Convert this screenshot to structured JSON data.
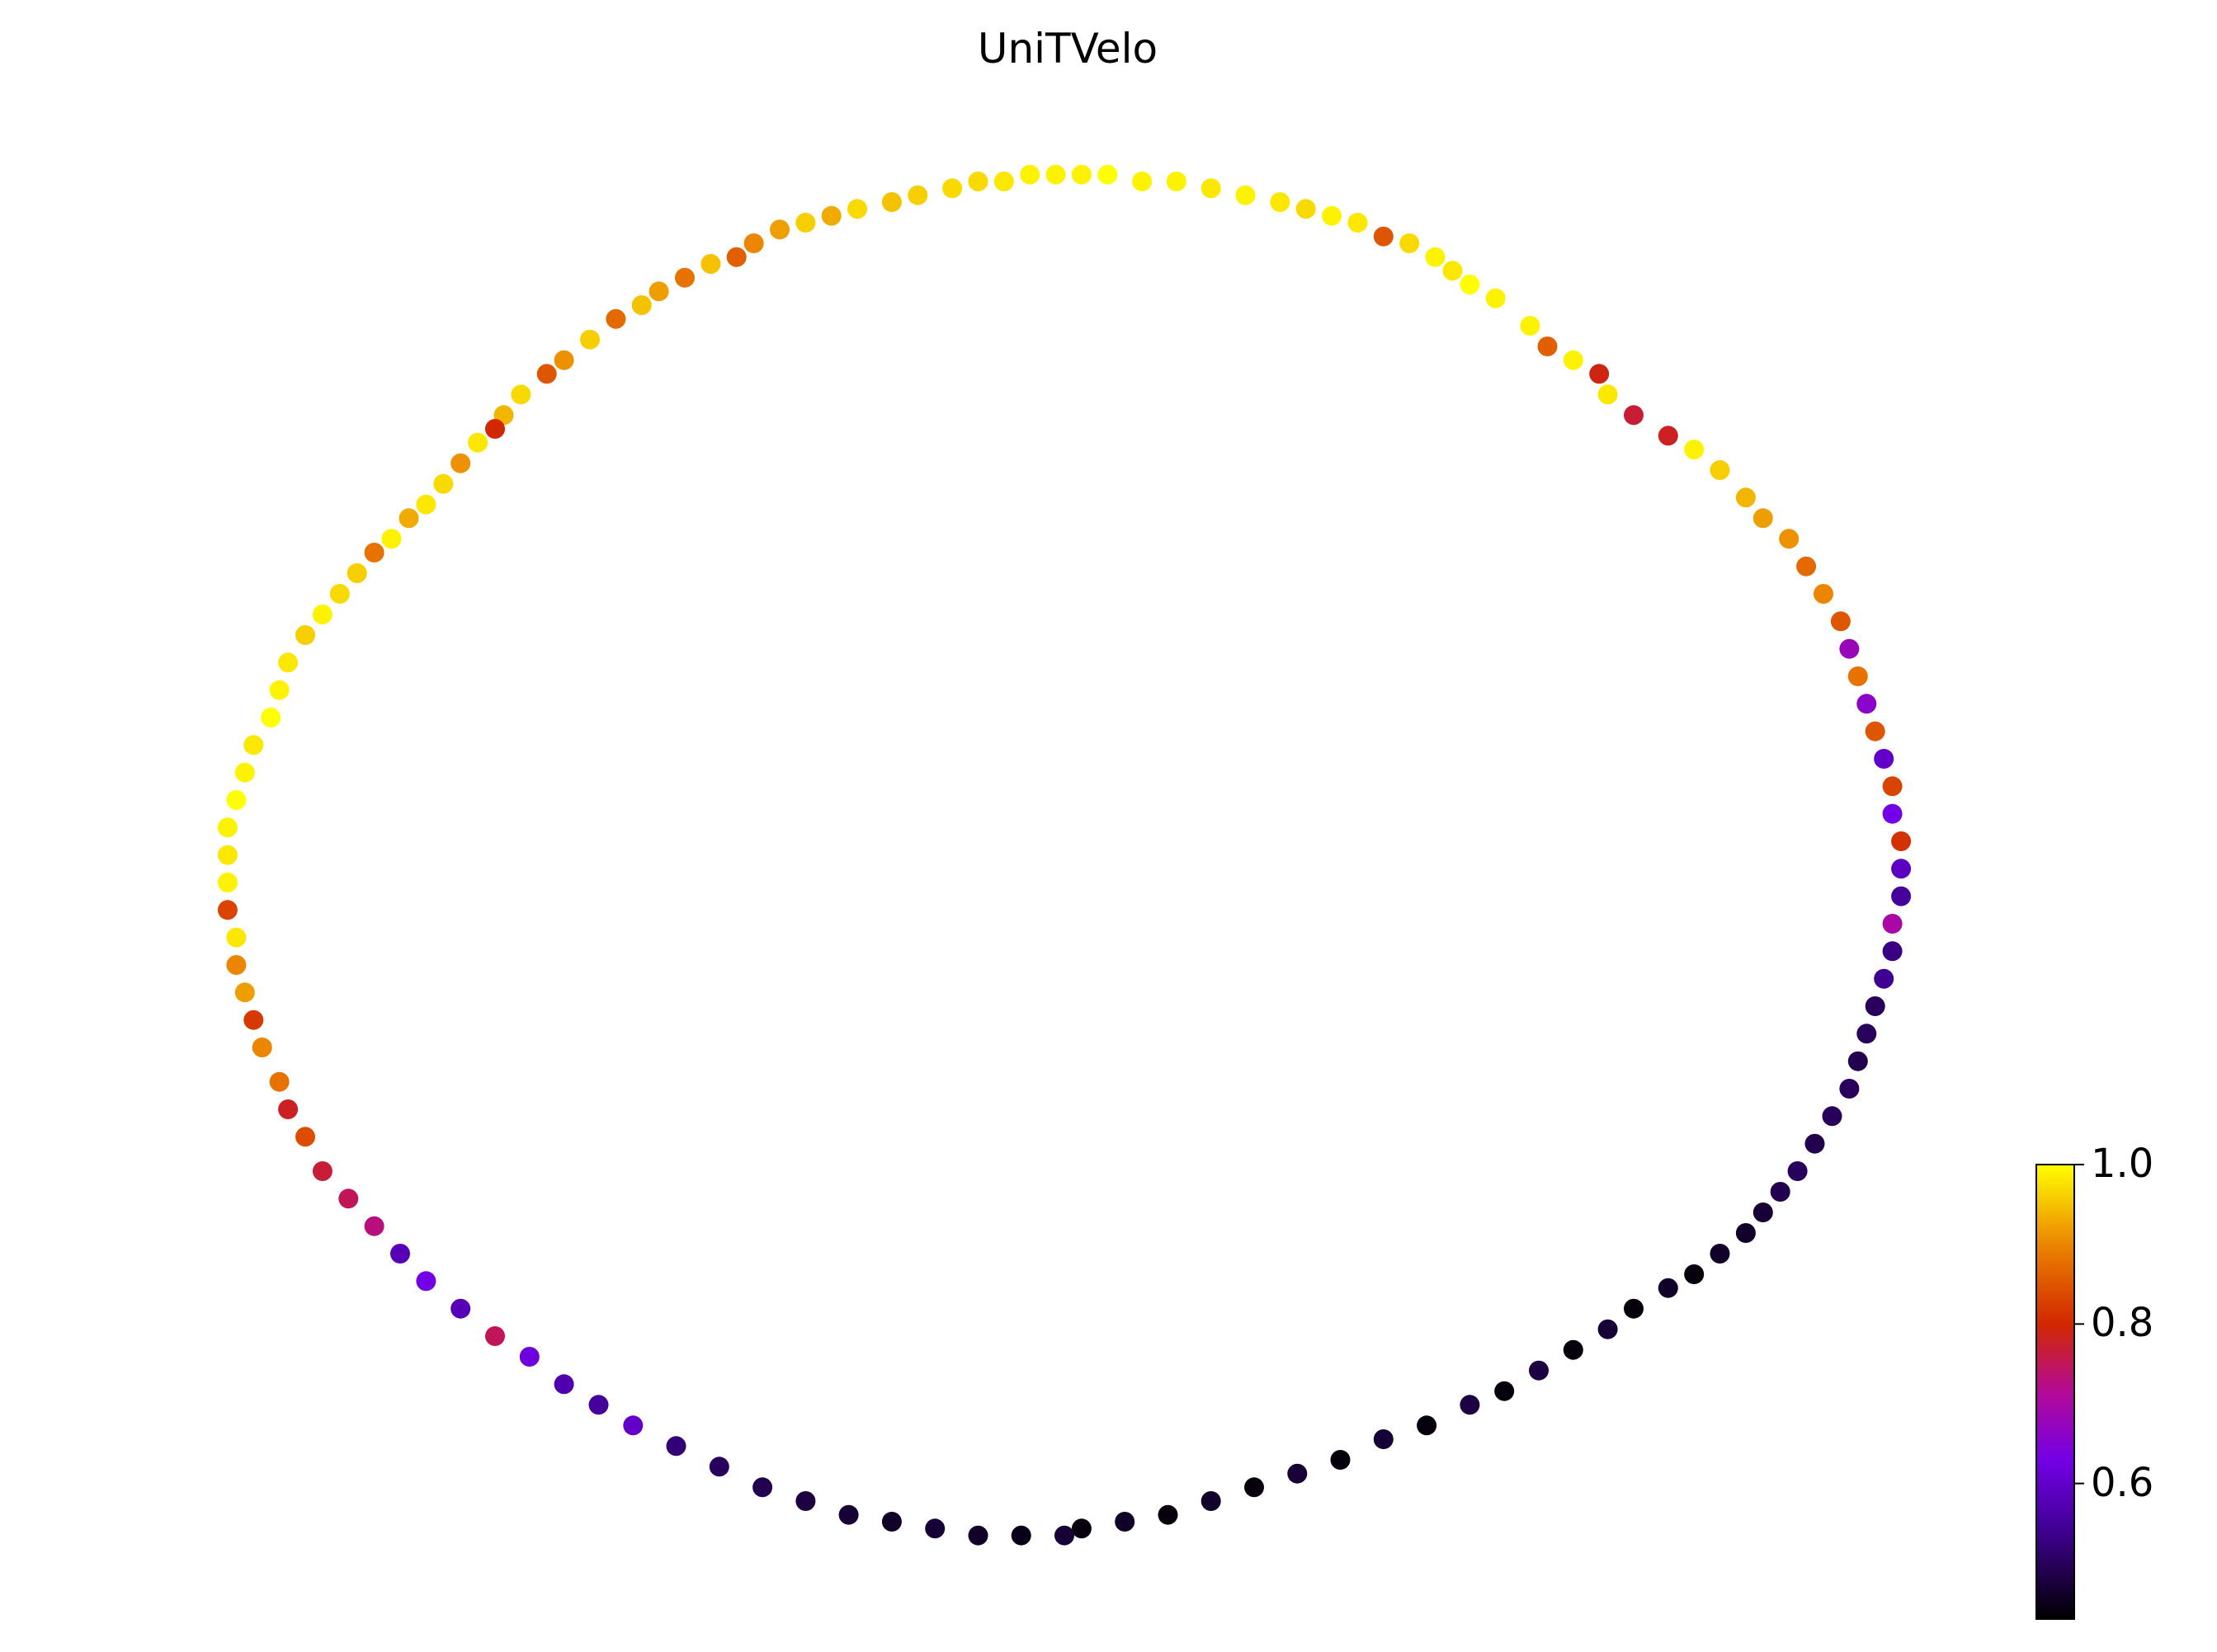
{
  "chart_data": {
    "type": "scatter",
    "title": "UniTVelo",
    "xlabel": "",
    "ylabel": "",
    "xlim": [
      -1.1,
      1.1
    ],
    "ylim": [
      -1.05,
      1.05
    ],
    "grid": false,
    "axes_visible": false,
    "colormap": "gnuplot",
    "colorbar": {
      "min": 0.43,
      "max": 1.0,
      "ticks": [
        0.6,
        0.8,
        1.0
      ],
      "tick_labels": [
        "0.6",
        "0.8",
        "1.0"
      ],
      "placement": "bottom-right"
    },
    "points": [
      {
        "x": -0.01,
        "y": 1.0,
        "c": 0.99
      },
      {
        "x": 0.02,
        "y": 1.0,
        "c": 0.99
      },
      {
        "x": 0.05,
        "y": 1.0,
        "c": 1.0
      },
      {
        "x": -0.04,
        "y": 1.0,
        "c": 0.99
      },
      {
        "x": 0.09,
        "y": 0.99,
        "c": 0.99
      },
      {
        "x": -0.07,
        "y": 0.99,
        "c": 0.98
      },
      {
        "x": 0.13,
        "y": 0.99,
        "c": 0.99
      },
      {
        "x": -0.1,
        "y": 0.99,
        "c": 0.97
      },
      {
        "x": 0.17,
        "y": 0.98,
        "c": 0.98
      },
      {
        "x": -0.13,
        "y": 0.98,
        "c": 0.97
      },
      {
        "x": 0.21,
        "y": 0.97,
        "c": 0.99
      },
      {
        "x": -0.17,
        "y": 0.97,
        "c": 0.96
      },
      {
        "x": 0.25,
        "y": 0.96,
        "c": 0.98
      },
      {
        "x": -0.2,
        "y": 0.96,
        "c": 0.95
      },
      {
        "x": 0.28,
        "y": 0.95,
        "c": 0.97
      },
      {
        "x": -0.24,
        "y": 0.95,
        "c": 0.97
      },
      {
        "x": 0.31,
        "y": 0.94,
        "c": 0.99
      },
      {
        "x": -0.27,
        "y": 0.94,
        "c": 0.93
      },
      {
        "x": 0.34,
        "y": 0.93,
        "c": 0.98
      },
      {
        "x": -0.3,
        "y": 0.93,
        "c": 0.96
      },
      {
        "x": 0.37,
        "y": 0.91,
        "c": 0.85
      },
      {
        "x": -0.33,
        "y": 0.92,
        "c": 0.92
      },
      {
        "x": 0.4,
        "y": 0.9,
        "c": 0.97
      },
      {
        "x": -0.36,
        "y": 0.9,
        "c": 0.9
      },
      {
        "x": 0.43,
        "y": 0.88,
        "c": 0.99
      },
      {
        "x": -0.38,
        "y": 0.88,
        "c": 0.86
      },
      {
        "x": 0.45,
        "y": 0.86,
        "c": 0.98
      },
      {
        "x": -0.41,
        "y": 0.87,
        "c": 0.95
      },
      {
        "x": 0.47,
        "y": 0.84,
        "c": 1.0
      },
      {
        "x": -0.44,
        "y": 0.85,
        "c": 0.88
      },
      {
        "x": 0.5,
        "y": 0.82,
        "c": 0.99
      },
      {
        "x": -0.47,
        "y": 0.83,
        "c": 0.92
      },
      {
        "x": 0.54,
        "y": 0.78,
        "c": 0.99
      },
      {
        "x": -0.49,
        "y": 0.81,
        "c": 0.95
      },
      {
        "x": 0.56,
        "y": 0.75,
        "c": 0.86
      },
      {
        "x": -0.52,
        "y": 0.79,
        "c": 0.87
      },
      {
        "x": 0.59,
        "y": 0.73,
        "c": 0.99
      },
      {
        "x": -0.55,
        "y": 0.76,
        "c": 0.96
      },
      {
        "x": 0.62,
        "y": 0.71,
        "c": 0.79
      },
      {
        "x": -0.58,
        "y": 0.73,
        "c": 0.91
      },
      {
        "x": 0.63,
        "y": 0.68,
        "c": 0.98
      },
      {
        "x": -0.6,
        "y": 0.71,
        "c": 0.85
      },
      {
        "x": 0.66,
        "y": 0.65,
        "c": 0.77
      },
      {
        "x": -0.63,
        "y": 0.68,
        "c": 0.97
      },
      {
        "x": 0.7,
        "y": 0.62,
        "c": 0.78
      },
      {
        "x": -0.65,
        "y": 0.65,
        "c": 0.94
      },
      {
        "x": 0.73,
        "y": 0.6,
        "c": 0.99
      },
      {
        "x": -0.66,
        "y": 0.63,
        "c": 0.8
      },
      {
        "x": 0.76,
        "y": 0.57,
        "c": 0.96
      },
      {
        "x": -0.68,
        "y": 0.61,
        "c": 0.98
      },
      {
        "x": 0.79,
        "y": 0.53,
        "c": 0.94
      },
      {
        "x": -0.7,
        "y": 0.58,
        "c": 0.91
      },
      {
        "x": 0.81,
        "y": 0.5,
        "c": 0.92
      },
      {
        "x": -0.72,
        "y": 0.55,
        "c": 0.97
      },
      {
        "x": 0.84,
        "y": 0.47,
        "c": 0.91
      },
      {
        "x": -0.74,
        "y": 0.52,
        "c": 0.98
      },
      {
        "x": 0.86,
        "y": 0.43,
        "c": 0.87
      },
      {
        "x": -0.76,
        "y": 0.5,
        "c": 0.93
      },
      {
        "x": 0.88,
        "y": 0.39,
        "c": 0.9
      },
      {
        "x": -0.78,
        "y": 0.47,
        "c": 0.99
      },
      {
        "x": 0.9,
        "y": 0.35,
        "c": 0.85
      },
      {
        "x": -0.8,
        "y": 0.45,
        "c": 0.88
      },
      {
        "x": 0.91,
        "y": 0.31,
        "c": 0.68
      },
      {
        "x": -0.82,
        "y": 0.42,
        "c": 0.96
      },
      {
        "x": 0.92,
        "y": 0.27,
        "c": 0.88
      },
      {
        "x": -0.84,
        "y": 0.39,
        "c": 0.97
      },
      {
        "x": 0.93,
        "y": 0.23,
        "c": 0.66
      },
      {
        "x": -0.86,
        "y": 0.36,
        "c": 0.99
      },
      {
        "x": 0.94,
        "y": 0.19,
        "c": 0.85
      },
      {
        "x": -0.88,
        "y": 0.33,
        "c": 0.96
      },
      {
        "x": 0.95,
        "y": 0.15,
        "c": 0.6
      },
      {
        "x": -0.9,
        "y": 0.29,
        "c": 0.98
      },
      {
        "x": 0.96,
        "y": 0.11,
        "c": 0.83
      },
      {
        "x": -0.91,
        "y": 0.25,
        "c": 0.99
      },
      {
        "x": 0.96,
        "y": 0.07,
        "c": 0.63
      },
      {
        "x": -0.92,
        "y": 0.21,
        "c": 1.0
      },
      {
        "x": 0.97,
        "y": 0.03,
        "c": 0.81
      },
      {
        "x": -0.94,
        "y": 0.17,
        "c": 0.98
      },
      {
        "x": 0.97,
        "y": -0.01,
        "c": 0.59
      },
      {
        "x": -0.95,
        "y": 0.13,
        "c": 0.99
      },
      {
        "x": 0.97,
        "y": -0.05,
        "c": 0.55
      },
      {
        "x": -0.96,
        "y": 0.09,
        "c": 1.0
      },
      {
        "x": 0.96,
        "y": -0.09,
        "c": 0.7
      },
      {
        "x": -0.97,
        "y": 0.05,
        "c": 0.99
      },
      {
        "x": 0.96,
        "y": -0.13,
        "c": 0.53
      },
      {
        "x": -0.97,
        "y": 0.01,
        "c": 0.98
      },
      {
        "x": 0.95,
        "y": -0.17,
        "c": 0.54
      },
      {
        "x": -0.97,
        "y": -0.03,
        "c": 0.99
      },
      {
        "x": 0.94,
        "y": -0.21,
        "c": 0.5
      },
      {
        "x": -0.97,
        "y": -0.07,
        "c": 0.83
      },
      {
        "x": 0.93,
        "y": -0.25,
        "c": 0.5
      },
      {
        "x": -0.96,
        "y": -0.11,
        "c": 0.98
      },
      {
        "x": 0.92,
        "y": -0.29,
        "c": 0.49
      },
      {
        "x": -0.96,
        "y": -0.15,
        "c": 0.9
      },
      {
        "x": 0.91,
        "y": -0.33,
        "c": 0.5
      },
      {
        "x": -0.95,
        "y": -0.19,
        "c": 0.92
      },
      {
        "x": 0.89,
        "y": -0.37,
        "c": 0.5
      },
      {
        "x": -0.94,
        "y": -0.23,
        "c": 0.82
      },
      {
        "x": 0.87,
        "y": -0.41,
        "c": 0.49
      },
      {
        "x": -0.93,
        "y": -0.27,
        "c": 0.9
      },
      {
        "x": 0.85,
        "y": -0.45,
        "c": 0.5
      },
      {
        "x": -0.91,
        "y": -0.32,
        "c": 0.88
      },
      {
        "x": 0.83,
        "y": -0.48,
        "c": 0.49
      },
      {
        "x": -0.9,
        "y": -0.36,
        "c": 0.78
      },
      {
        "x": 0.81,
        "y": -0.51,
        "c": 0.47
      },
      {
        "x": -0.88,
        "y": -0.4,
        "c": 0.84
      },
      {
        "x": 0.79,
        "y": -0.54,
        "c": 0.46
      },
      {
        "x": -0.86,
        "y": -0.45,
        "c": 0.77
      },
      {
        "x": 0.76,
        "y": -0.57,
        "c": 0.46
      },
      {
        "x": -0.83,
        "y": -0.49,
        "c": 0.75
      },
      {
        "x": 0.73,
        "y": -0.6,
        "c": 0.44
      },
      {
        "x": -0.8,
        "y": -0.53,
        "c": 0.73
      },
      {
        "x": 0.7,
        "y": -0.62,
        "c": 0.46
      },
      {
        "x": -0.77,
        "y": -0.57,
        "c": 0.58
      },
      {
        "x": 0.66,
        "y": -0.65,
        "c": 0.44
      },
      {
        "x": -0.74,
        "y": -0.61,
        "c": 0.63
      },
      {
        "x": 0.63,
        "y": -0.68,
        "c": 0.47
      },
      {
        "x": -0.7,
        "y": -0.65,
        "c": 0.58
      },
      {
        "x": 0.59,
        "y": -0.71,
        "c": 0.44
      },
      {
        "x": -0.66,
        "y": -0.69,
        "c": 0.75
      },
      {
        "x": 0.55,
        "y": -0.74,
        "c": 0.48
      },
      {
        "x": -0.62,
        "y": -0.72,
        "c": 0.62
      },
      {
        "x": 0.51,
        "y": -0.77,
        "c": 0.44
      },
      {
        "x": -0.58,
        "y": -0.76,
        "c": 0.57
      },
      {
        "x": 0.47,
        "y": -0.79,
        "c": 0.48
      },
      {
        "x": -0.54,
        "y": -0.79,
        "c": 0.55
      },
      {
        "x": 0.42,
        "y": -0.82,
        "c": 0.44
      },
      {
        "x": -0.5,
        "y": -0.82,
        "c": 0.6
      },
      {
        "x": 0.37,
        "y": -0.84,
        "c": 0.47
      },
      {
        "x": -0.45,
        "y": -0.85,
        "c": 0.52
      },
      {
        "x": 0.32,
        "y": -0.87,
        "c": 0.44
      },
      {
        "x": -0.4,
        "y": -0.88,
        "c": 0.5
      },
      {
        "x": 0.27,
        "y": -0.89,
        "c": 0.47
      },
      {
        "x": -0.35,
        "y": -0.91,
        "c": 0.49
      },
      {
        "x": 0.22,
        "y": -0.91,
        "c": 0.44
      },
      {
        "x": -0.3,
        "y": -0.93,
        "c": 0.48
      },
      {
        "x": 0.17,
        "y": -0.93,
        "c": 0.46
      },
      {
        "x": -0.25,
        "y": -0.95,
        "c": 0.47
      },
      {
        "x": 0.12,
        "y": -0.95,
        "c": 0.44
      },
      {
        "x": -0.2,
        "y": -0.96,
        "c": 0.46
      },
      {
        "x": 0.07,
        "y": -0.96,
        "c": 0.46
      },
      {
        "x": -0.15,
        "y": -0.97,
        "c": 0.47
      },
      {
        "x": 0.02,
        "y": -0.97,
        "c": 0.44
      },
      {
        "x": -0.1,
        "y": -0.98,
        "c": 0.46
      },
      {
        "x": -0.05,
        "y": -0.98,
        "c": 0.45
      },
      {
        "x": 0.0,
        "y": -0.98,
        "c": 0.47
      }
    ]
  }
}
